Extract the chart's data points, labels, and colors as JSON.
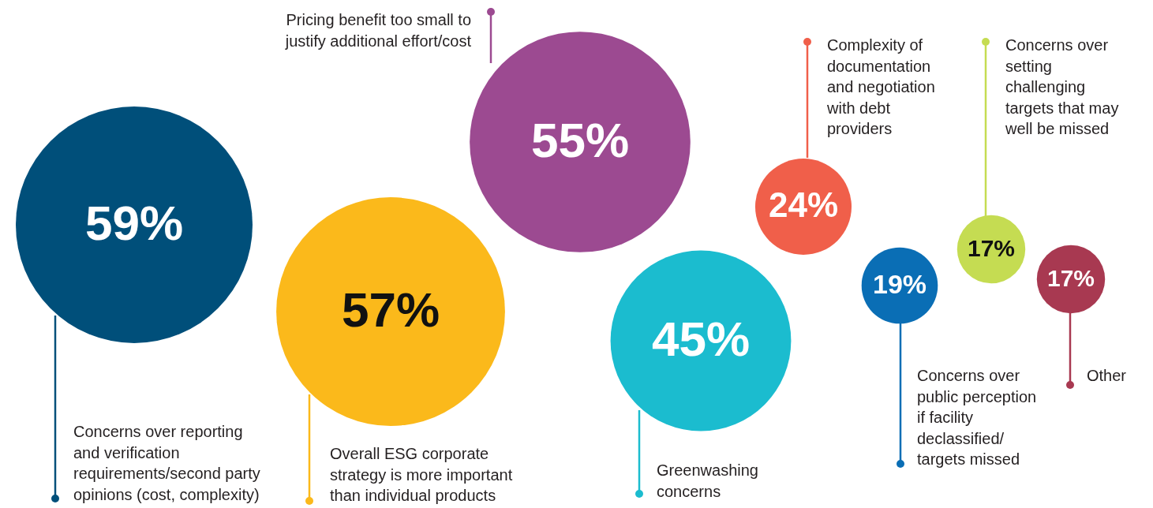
{
  "chart_data": {
    "type": "other",
    "categories": [
      "Concerns over reporting and verification requirements/second party opinions (cost, complexity)",
      "Overall ESG corporate strategy is more important than individual products",
      "Pricing benefit too small to justify additional effort/cost",
      "Greenwashing concerns",
      "Complexity of documentation and negotiation with debt providers",
      "Concerns over public perception if facility declassified/ targets missed",
      "Concerns over setting challenging targets that may well be missed",
      "Other"
    ],
    "values": [
      59,
      57,
      55,
      45,
      24,
      19,
      17,
      17
    ],
    "value_labels": [
      "59%",
      "57%",
      "55%",
      "45%",
      "24%",
      "19%",
      "17%",
      "17%"
    ],
    "colors": [
      "#004f7a",
      "#fbb91b",
      "#9c4a91",
      "#1bbccf",
      "#f05f4a",
      "#0a6eb5",
      "#c5dc52",
      "#a83951"
    ]
  }
}
